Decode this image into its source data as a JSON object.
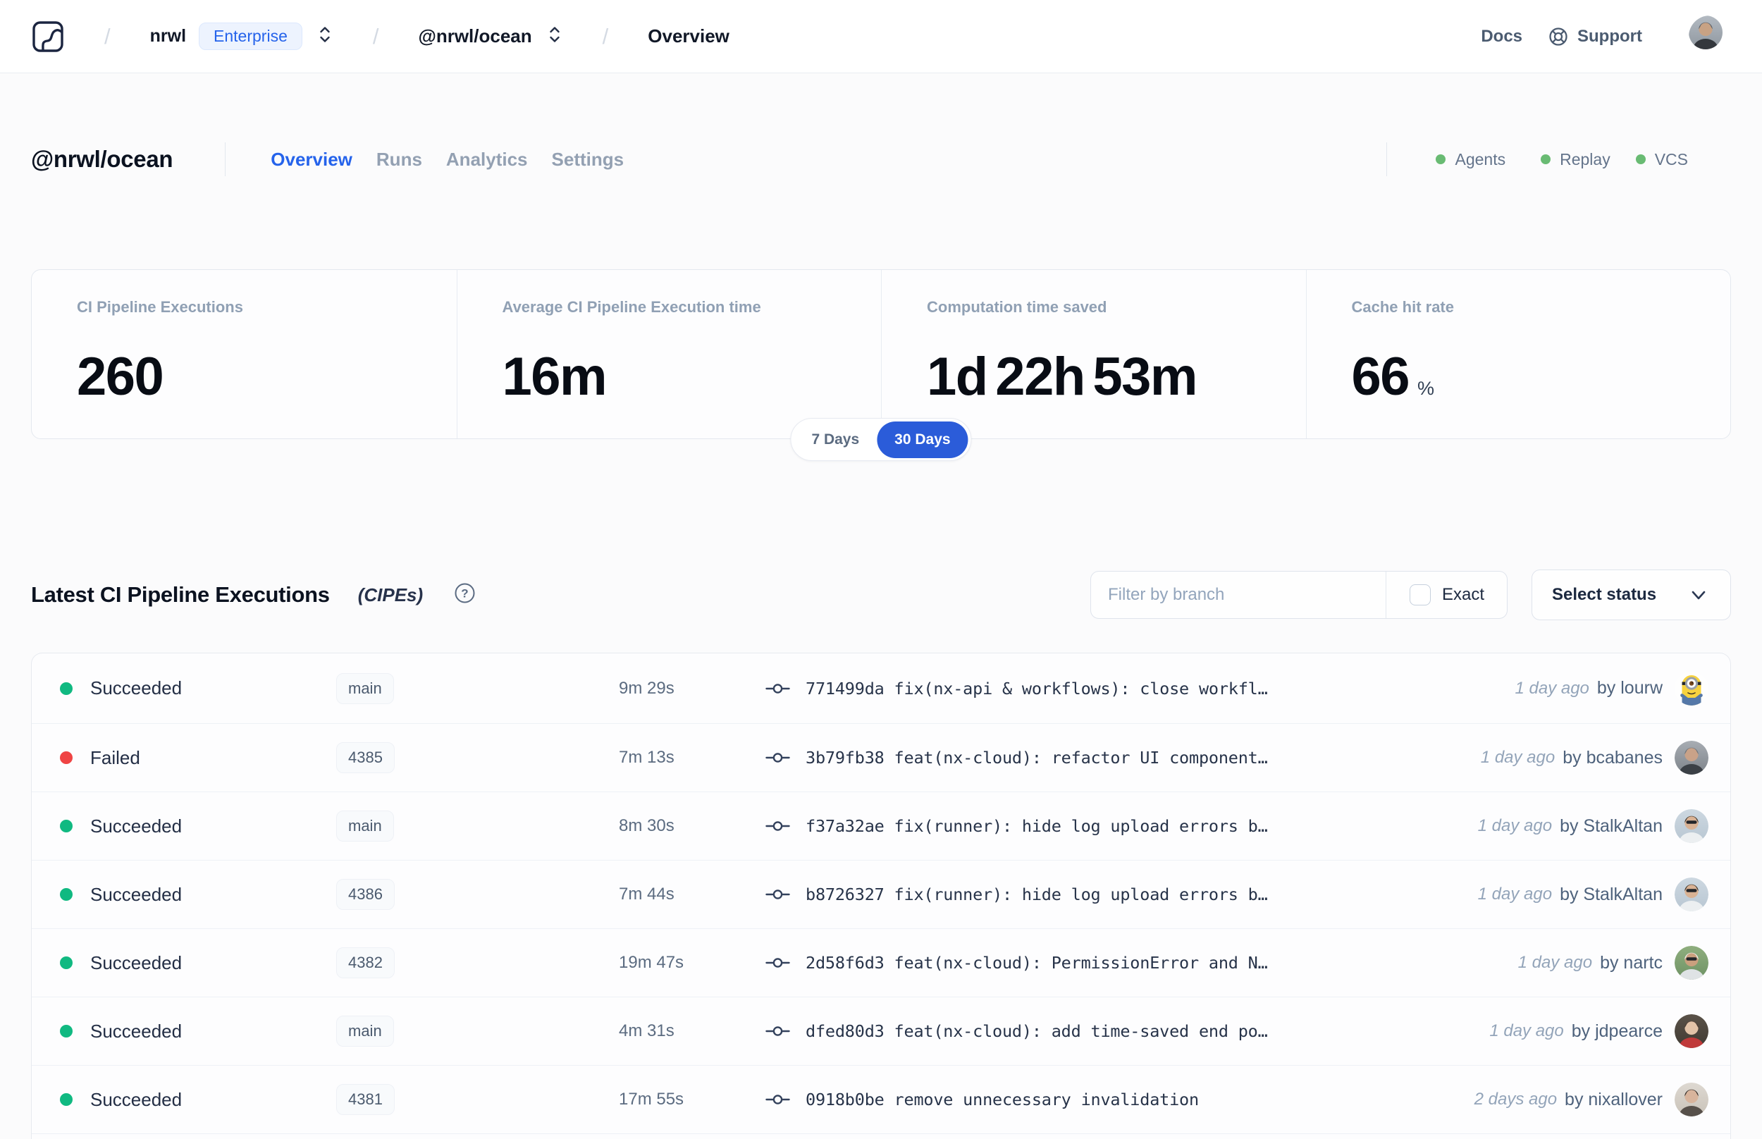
{
  "topbar": {
    "breadcrumb": {
      "separator": "/",
      "org": "nrwl",
      "org_badge": "Enterprise",
      "workspace": "@nrwl/ocean",
      "page": "Overview"
    },
    "docs_label": "Docs",
    "support_label": "Support"
  },
  "workspace_header": {
    "title": "@nrwl/ocean",
    "tabs": [
      {
        "label": "Overview",
        "active": true
      },
      {
        "label": "Runs",
        "active": false
      },
      {
        "label": "Analytics",
        "active": false
      },
      {
        "label": "Settings",
        "active": false
      }
    ],
    "status_indicators": [
      {
        "label": "Agents",
        "color": "#69bb73"
      },
      {
        "label": "Replay",
        "color": "#69bb73"
      },
      {
        "label": "VCS",
        "color": "#69bb73"
      }
    ]
  },
  "stats": {
    "cards": [
      {
        "label": "CI Pipeline Executions",
        "value": "260"
      },
      {
        "label": "Average CI Pipeline Execution time",
        "value": "16m"
      },
      {
        "label": "Computation time saved",
        "value": "1d 22h 53m"
      },
      {
        "label": "Cache hit rate",
        "value": "66",
        "unit": "%"
      }
    ],
    "range_toggle": {
      "options": [
        "7 Days",
        "30 Days"
      ],
      "selected": "30 Days",
      "selected_color": "#2b5cd9"
    }
  },
  "cipe_section": {
    "title": "Latest CI Pipeline Executions",
    "title_suffix": "(CIPEs)",
    "filter_placeholder": "Filter by branch",
    "filter_value": "",
    "exact_label": "Exact",
    "exact_checked": false,
    "status_select_label": "Select status"
  },
  "runs": [
    {
      "status": "Succeeded",
      "status_color": "#10b981",
      "branch": "main",
      "duration": "9m 29s",
      "commit_hash": "771499da",
      "commit_message": "fix(nx-api & workflows): close workfl…",
      "time_ago": "1 day ago",
      "author": "by lourw",
      "avatar": {
        "kind": "minion",
        "body": "#f7d23e",
        "overalls": "#5578a8",
        "eye_iris": "#7a4b22"
      }
    },
    {
      "status": "Failed",
      "status_color": "#ef4444",
      "branch": "4385",
      "duration": "7m 13s",
      "commit_hash": "3b79fb38",
      "commit_message": "feat(nx-cloud): refactor UI component…",
      "time_ago": "1 day ago",
      "author": "by bcabanes",
      "avatar": {
        "kind": "person",
        "bg": "#a8adb3",
        "bg2": "#7d838a",
        "skin": "#c9a288",
        "shirt": "#3b4046",
        "hair": "#6d747c",
        "shades": false
      }
    },
    {
      "status": "Succeeded",
      "status_color": "#10b981",
      "branch": "main",
      "duration": "8m 30s",
      "commit_hash": "f37a32ae",
      "commit_message": "fix(runner): hide log upload errors b…",
      "time_ago": "1 day ago",
      "author": "by StalkAltan",
      "avatar": {
        "kind": "person",
        "bg": "#cdd8e1",
        "bg2": "#b8c6d2",
        "skin": "#d9b294",
        "shirt": "#eceff1",
        "hair": "#3f352b",
        "shades": true
      }
    },
    {
      "status": "Succeeded",
      "status_color": "#10b981",
      "branch": "4386",
      "duration": "7m 44s",
      "commit_hash": "b8726327",
      "commit_message": "fix(runner): hide log upload errors b…",
      "time_ago": "1 day ago",
      "author": "by StalkAltan",
      "avatar": {
        "kind": "person",
        "bg": "#cdd8e1",
        "bg2": "#b8c6d2",
        "skin": "#d9b294",
        "shirt": "#eceff1",
        "hair": "#3f352b",
        "shades": true
      }
    },
    {
      "status": "Succeeded",
      "status_color": "#10b981",
      "branch": "4382",
      "duration": "19m 47s",
      "commit_hash": "2d58f6d3",
      "commit_message": "feat(nx-cloud): PermissionError and N…",
      "time_ago": "1 day ago",
      "author": "by nartc",
      "avatar": {
        "kind": "person",
        "bg": "#8fae7e",
        "bg2": "#6e9264",
        "skin": "#caa07e",
        "shirt": "#dfe3e5",
        "hair": "#f2f3f4",
        "shades": true
      }
    },
    {
      "status": "Succeeded",
      "status_color": "#10b981",
      "branch": "main",
      "duration": "4m 31s",
      "commit_hash": "dfed80d3",
      "commit_message": "feat(nx-cloud): add time-saved end po…",
      "time_ago": "1 day ago",
      "author": "by jdpearce",
      "avatar": {
        "kind": "person",
        "bg": "#5a5248",
        "bg2": "#403a33",
        "skin": "#e2c3a8",
        "shirt": "#c03a3a",
        "hair": "#4a3b32",
        "shades": false
      }
    },
    {
      "status": "Succeeded",
      "status_color": "#10b981",
      "branch": "4381",
      "duration": "17m 55s",
      "commit_hash": "0918b0be",
      "commit_message": "remove unnecessary invalidation",
      "time_ago": "2 days ago",
      "author": "by nixallover",
      "avatar": {
        "kind": "person",
        "bg": "#ded9d2",
        "bg2": "#c9c2b8",
        "skin": "#d8b49c",
        "shirt": "#57504a",
        "hair": "#2f2a26",
        "shades": false
      }
    }
  ],
  "topbar_avatar": {
    "kind": "person",
    "bg": "#b3bac2",
    "bg2": "#8f979f",
    "skin": "#c8a284",
    "shirt": "#34383d",
    "hair": "#596069",
    "shades": false
  }
}
